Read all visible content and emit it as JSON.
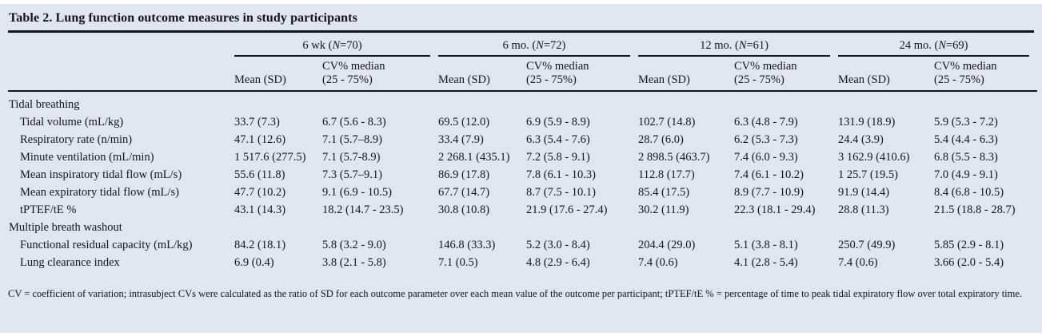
{
  "title": "Table 2. Lung function outcome measures in study participants",
  "table": {
    "column_groups": [
      {
        "prefix": "6 wk (",
        "n": "N",
        "suffix": "=70)"
      },
      {
        "prefix": "6 mo. (",
        "n": "N",
        "suffix": "=72)"
      },
      {
        "prefix": "12 mo. (",
        "n": "N",
        "suffix": "=61)"
      },
      {
        "prefix": "24 mo. (",
        "n": "N",
        "suffix": "=69)"
      }
    ],
    "sub_headers": {
      "mean": "Mean (SD)",
      "cv_line1": "CV% median",
      "cv_line2": "(25 - 75%)"
    },
    "rows": [
      {
        "type": "section",
        "label": "Tidal breathing"
      },
      {
        "type": "data",
        "label": "Tidal volume (mL/kg)",
        "values": [
          "33.7 (7.3)",
          "6.7 (5.6 - 8.3)",
          "69.5 (12.0)",
          "6.9 (5.9 - 8.9)",
          "102.7 (14.8)",
          "6.3 (4.8 - 7.9)",
          "131.9 (18.9)",
          "5.9 (5.3 - 7.2)"
        ]
      },
      {
        "type": "data",
        "label": "Respiratory rate (n/min)",
        "values": [
          "47.1 (12.6)",
          "7.1 (5.7–8.9)",
          "33.4 (7.9)",
          "6.3 (5.4 - 7.6)",
          "28.7 (6.0)",
          "6.2 (5.3 - 7.3)",
          "24.4 (3.9)",
          "5.4 (4.4 - 6.3)"
        ]
      },
      {
        "type": "data",
        "label": "Minute ventilation (mL/min)",
        "values": [
          "1 517.6 (277.5)",
          "7.1 (5.7-8.9)",
          "2 268.1 (435.1)",
          "7.2 (5.8 - 9.1)",
          "2 898.5 (463.7)",
          "7.4 (6.0 - 9.3)",
          "3 162.9 (410.6)",
          "6.8 (5.5 - 8.3)"
        ]
      },
      {
        "type": "data",
        "label": "Mean inspiratory tidal flow (mL/s)",
        "values": [
          "55.6 (11.8)",
          "7.3 (5.7–9.1)",
          "86.9 (17.8)",
          "7.8 (6.1 - 10.3)",
          "112.8 (17.7)",
          "7.4 (6.1 - 10.2)",
          "1 25.7 (19.5)",
          "7.0 (4.9 - 9.1)"
        ]
      },
      {
        "type": "data",
        "label": "Mean expiratory tidal flow (mL/s)",
        "values": [
          "47.7 (10.2)",
          "9.1 (6.9 - 10.5)",
          "67.7 (14.7)",
          "8.7 (7.5 - 10.1)",
          "85.4 (17.5)",
          "8.9 (7.7 - 10.9)",
          "91.9 (14.4)",
          "8.4 (6.8 - 10.5)"
        ]
      },
      {
        "type": "data",
        "label": "tPTEF/tE %",
        "values": [
          "43.1 (14.3)",
          "18.2 (14.7 - 23.5)",
          "30.8 (10.8)",
          "21.9 (17.6 - 27.4)",
          "30.2 (11.9)",
          "22.3 (18.1 - 29.4)",
          "28.8 (11.3)",
          "21.5 (18.8 - 28.7)"
        ]
      },
      {
        "type": "section",
        "label": "Multiple breath washout"
      },
      {
        "type": "data",
        "label": "Functional residual capacity (mL/kg)",
        "values": [
          "84.2 (18.1)",
          "5.8 (3.2 - 9.0)",
          "146.8 (33.3)",
          "5.2 (3.0 - 8.4)",
          "204.4 (29.0)",
          "5.1 (3.8 - 8.1)",
          "250.7 (49.9)",
          "5.85 (2.9 - 8.1)"
        ]
      },
      {
        "type": "data",
        "label": "Lung clearance index",
        "values": [
          "6.9 (0.4)",
          "3.8 (2.1 - 5.8)",
          "7.1 (0.5)",
          "4.8 (2.9 - 6.4)",
          "7.4 (0.6)",
          "4.1 (2.8 - 5.4)",
          "7.4 (0.6)",
          "3.66 (2.0 - 5.4)"
        ]
      }
    ]
  },
  "footnote": "CV = coefficient of variation; intrasubject CVs were calculated as the ratio of SD for each outcome parameter over each mean value of the outcome per participant; tPTEF/tE % = percentage of time to peak tidal expiratory flow over total expiratory time.",
  "colors": {
    "panel_background": "#e0e5f0",
    "text": "#16161f",
    "rule": "#14141f"
  }
}
